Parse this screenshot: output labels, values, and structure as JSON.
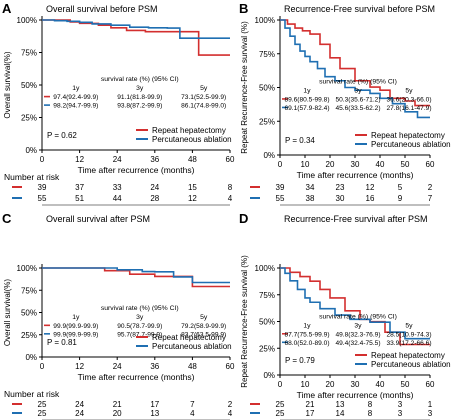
{
  "colors": {
    "red": "#d32f2f",
    "blue": "#1f6fb2"
  },
  "chart_data": [
    {
      "panel_letter": "A",
      "type": "line",
      "title": "Overall survival before PSM",
      "xlabel": "Time after recurrence (months)",
      "ylabel": "Overall survival(%)",
      "xlim": [
        0,
        60
      ],
      "ylim": [
        0,
        100
      ],
      "xticks": [
        "0",
        "12",
        "24",
        "36",
        "48",
        "60"
      ],
      "yticks": [
        "0%",
        "25%",
        "50%",
        "75%",
        "100%"
      ],
      "p_value": "P = 0.62",
      "survival_header": "survival rate (%) (95% CI)",
      "survival_cols": [
        "1y",
        "3y",
        "5y"
      ],
      "survival_rows": [
        [
          "97.4(92.4-99.9)",
          "91.1(81.8-99.9)",
          "73.1(52.5-99.9)"
        ],
        [
          "98.2(94.7-99.9)",
          "93.8(87.2-99.9)",
          "86.1(74.8-99.0)"
        ]
      ],
      "series": [
        {
          "name": "Repeat hepatectomy",
          "color": "#d32f2f",
          "x": [
            0,
            5,
            9,
            12,
            18,
            22,
            27,
            33,
            40,
            48,
            50,
            60
          ],
          "y": [
            100,
            100,
            98.5,
            97.4,
            96,
            94,
            92,
            91,
            91,
            91,
            73,
            73
          ]
        },
        {
          "name": "Percutaneous ablation",
          "color": "#1f6fb2",
          "x": [
            0,
            4,
            8,
            12,
            16,
            22,
            28,
            34,
            40,
            44,
            60
          ],
          "y": [
            100,
            99.5,
            99,
            98.2,
            97,
            96,
            94.5,
            94,
            93.8,
            86,
            86
          ]
        }
      ],
      "risk_title": "Number at risk",
      "risk_rows": [
        {
          "color": "#d32f2f",
          "values": [
            "39",
            "37",
            "33",
            "24",
            "15",
            "8"
          ]
        },
        {
          "color": "#1f6fb2",
          "values": [
            "55",
            "51",
            "44",
            "28",
            "12",
            "4"
          ]
        }
      ]
    },
    {
      "panel_letter": "B",
      "type": "line",
      "title": "Recurrence-Free survival before PSM",
      "xlabel": "Time after recurrence (months)",
      "ylabel": "Repeat Recurrence-Free survival (%)",
      "xlim": [
        0,
        60
      ],
      "ylim": [
        0,
        100
      ],
      "xticks": [
        "0",
        "10",
        "20",
        "30",
        "40",
        "50",
        "60"
      ],
      "yticks": [
        "0%",
        "25%",
        "50%",
        "75%",
        "100%"
      ],
      "p_value": "P = 0.34",
      "survival_header": "survival rate (%) (95% CI)",
      "survival_cols": [
        "1y",
        "3y",
        "5y"
      ],
      "survival_rows": [
        [
          "89.6(80.5-99.8)",
          "50.3(35.6-71.2)",
          "36.6(20.3-66.0)"
        ],
        [
          "69.1(57.9-82.4)",
          "45.6(33.5-62.2)",
          "27.8(16.1-47.9)"
        ]
      ],
      "series": [
        {
          "name": "Repeat hepatectomy",
          "color": "#d32f2f",
          "x": [
            0,
            3,
            6,
            9,
            12,
            16,
            20,
            24,
            30,
            36,
            40,
            44,
            50,
            54,
            60
          ],
          "y": [
            100,
            97,
            94,
            92,
            89.6,
            82,
            72,
            64,
            55,
            50.3,
            48,
            42,
            40,
            36.6,
            36.6
          ]
        },
        {
          "name": "Percutaneous ablation",
          "color": "#1f6fb2",
          "x": [
            0,
            2,
            4,
            6,
            8,
            10,
            12,
            15,
            18,
            22,
            26,
            30,
            36,
            40,
            45,
            50,
            55,
            60
          ],
          "y": [
            100,
            94,
            88,
            82,
            77,
            73,
            69.1,
            64,
            58,
            55,
            50,
            48,
            45.6,
            42,
            38,
            32,
            27.8,
            27.8
          ]
        }
      ],
      "risk_title": "",
      "risk_rows": [
        {
          "color": "#d32f2f",
          "values": [
            "39",
            "34",
            "23",
            "12",
            "5",
            "2"
          ]
        },
        {
          "color": "#1f6fb2",
          "values": [
            "55",
            "38",
            "30",
            "16",
            "9",
            "7"
          ]
        }
      ]
    },
    {
      "panel_letter": "C",
      "type": "line",
      "title": "Overall survival after PSM",
      "xlabel": "Time after recurrence (months)",
      "ylabel": "Overall survival(%)",
      "xlim": [
        0,
        60
      ],
      "ylim": [
        0,
        100
      ],
      "xticks": [
        "0",
        "12",
        "24",
        "36",
        "48",
        "60"
      ],
      "yticks": [
        "0%",
        "25%",
        "50%",
        "75%",
        "100%"
      ],
      "p_value": "P = 0.81",
      "survival_header": "survival rate (%) (95% CI)",
      "survival_cols": [
        "1y",
        "3y",
        "5y"
      ],
      "survival_rows": [
        [
          "99.9(99.9-99.9)",
          "90.5(78.7-99.9)",
          "79.2(58.9-99.9)"
        ],
        [
          "99.9(99.9-99.9)",
          "95.7(87.7-99.9)",
          "83.7(63.5-99.9)"
        ]
      ],
      "series": [
        {
          "name": "Repeat hepatectomy",
          "color": "#d32f2f",
          "x": [
            0,
            12,
            20,
            28,
            36,
            44,
            48,
            60
          ],
          "y": [
            100,
            100,
            97,
            93,
            90.5,
            90.5,
            79.2,
            79.2
          ]
        },
        {
          "name": "Percutaneous ablation",
          "color": "#1f6fb2",
          "x": [
            0,
            12,
            24,
            32,
            36,
            42,
            48,
            60
          ],
          "y": [
            100,
            100,
            98,
            96,
            95.7,
            90,
            83.7,
            83.7
          ]
        }
      ],
      "risk_title": "Number at risk",
      "risk_rows": [
        {
          "color": "#d32f2f",
          "values": [
            "25",
            "24",
            "21",
            "17",
            "7",
            "2"
          ]
        },
        {
          "color": "#1f6fb2",
          "values": [
            "25",
            "24",
            "20",
            "13",
            "4",
            "4"
          ]
        }
      ]
    },
    {
      "panel_letter": "D",
      "type": "line",
      "title": "Recurrence-Free survival after PSM",
      "xlabel": "Time after recurrence (months)",
      "ylabel": "Repeat Recurrence-Free survival (%)",
      "xlim": [
        0,
        60
      ],
      "ylim": [
        0,
        100
      ],
      "xticks": [
        "0",
        "10",
        "20",
        "30",
        "40",
        "50",
        "60"
      ],
      "yticks": [
        "0%",
        "25%",
        "50%",
        "75%",
        "100%"
      ],
      "p_value": "P = 0.79",
      "survival_header": "survival rate (%) (95% CI)",
      "survival_cols": [
        "1y",
        "3y",
        "5y"
      ],
      "survival_rows": [
        [
          "87.7(75.5-99.9)",
          "49.8(32.3-76.9)",
          "28.5(10.9-74.3)"
        ],
        [
          "68.0(52.0-89.0)",
          "49.4(32.4-75.5)",
          "33.9(17.2-66.6)"
        ]
      ],
      "series": [
        {
          "name": "Repeat hepatectomy",
          "color": "#d32f2f",
          "x": [
            0,
            4,
            8,
            12,
            16,
            20,
            26,
            32,
            36,
            42,
            48,
            60
          ],
          "y": [
            100,
            96,
            92,
            87.7,
            80,
            72,
            60,
            52,
            49.8,
            40,
            28.5,
            28.5
          ]
        },
        {
          "name": "Percutaneous ablation",
          "color": "#1f6fb2",
          "x": [
            0,
            2,
            4,
            7,
            10,
            12,
            16,
            22,
            28,
            36,
            44,
            50,
            60
          ],
          "y": [
            100,
            95,
            88,
            80,
            72,
            68,
            62,
            56,
            52,
            49.4,
            40,
            33.9,
            33.9
          ]
        }
      ],
      "risk_title": "",
      "risk_rows": [
        {
          "color": "#d32f2f",
          "values": [
            "25",
            "21",
            "13",
            "8",
            "3",
            "1"
          ]
        },
        {
          "color": "#1f6fb2",
          "values": [
            "25",
            "17",
            "14",
            "8",
            "3",
            "3"
          ]
        }
      ]
    }
  ]
}
